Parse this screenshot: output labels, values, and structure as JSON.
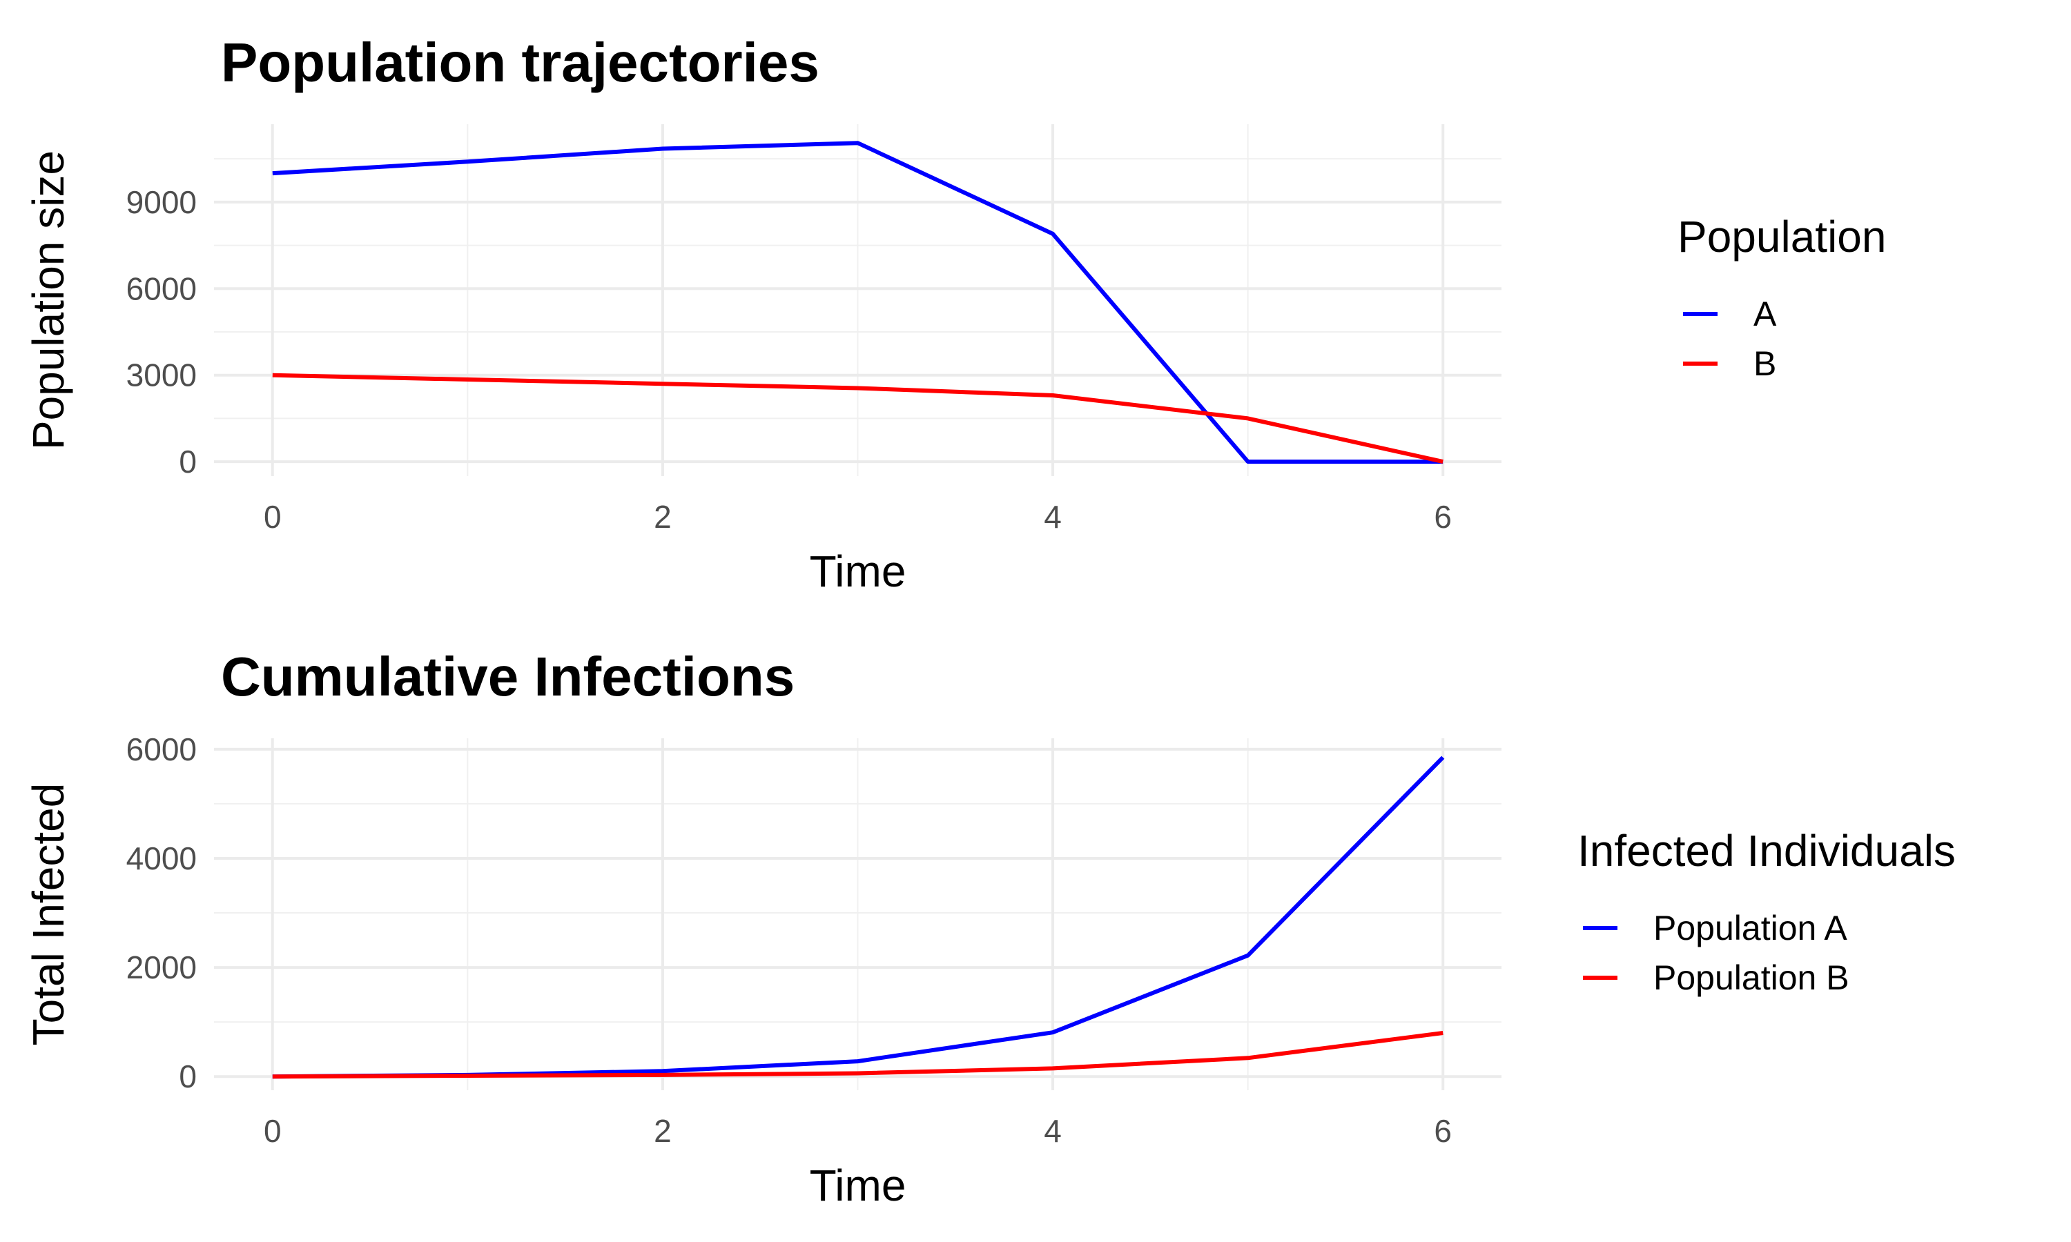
{
  "chart_data": [
    {
      "type": "line",
      "title": "Population trajectories",
      "xlabel": "Time",
      "ylabel": "Population size",
      "xlim": [
        -0.3,
        6.3
      ],
      "ylim": [
        -500,
        11700
      ],
      "x_ticks": [
        0,
        2,
        4,
        6
      ],
      "y_ticks": [
        0,
        3000,
        6000,
        9000
      ],
      "x_tick_labels": [
        "0",
        "2",
        "4",
        "6"
      ],
      "y_tick_labels": [
        "0",
        "3000",
        "6000",
        "9000"
      ],
      "x": [
        0,
        1,
        2,
        3,
        4,
        5,
        6
      ],
      "grid": true,
      "legend": {
        "title": "Population",
        "position": "right"
      },
      "series": [
        {
          "name": "A",
          "color": "#0000ff",
          "values": [
            10000,
            10400,
            10850,
            11050,
            7900,
            0,
            0
          ]
        },
        {
          "name": "B",
          "color": "#ff0000",
          "values": [
            3000,
            2850,
            2700,
            2550,
            2300,
            1500,
            0
          ]
        }
      ]
    },
    {
      "type": "line",
      "title": "Cumulative Infections",
      "xlabel": "Time",
      "ylabel": "Total Infected",
      "xlim": [
        -0.3,
        6.3
      ],
      "ylim": [
        -250,
        6200
      ],
      "x_ticks": [
        0,
        2,
        4,
        6
      ],
      "y_ticks": [
        0,
        2000,
        4000,
        6000
      ],
      "x_tick_labels": [
        "0",
        "2",
        "4",
        "6"
      ],
      "y_tick_labels": [
        "0",
        "2000",
        "4000",
        "6000"
      ],
      "x": [
        0,
        1,
        2,
        3,
        4,
        5,
        6
      ],
      "grid": true,
      "legend": {
        "title": "Infected Individuals",
        "position": "right"
      },
      "series": [
        {
          "name": "Population A",
          "color": "#0000ff",
          "values": [
            0,
            30,
            100,
            280,
            810,
            2220,
            5850
          ]
        },
        {
          "name": "Population B",
          "color": "#ff0000",
          "values": [
            0,
            15,
            30,
            60,
            150,
            340,
            800
          ]
        }
      ]
    }
  ]
}
